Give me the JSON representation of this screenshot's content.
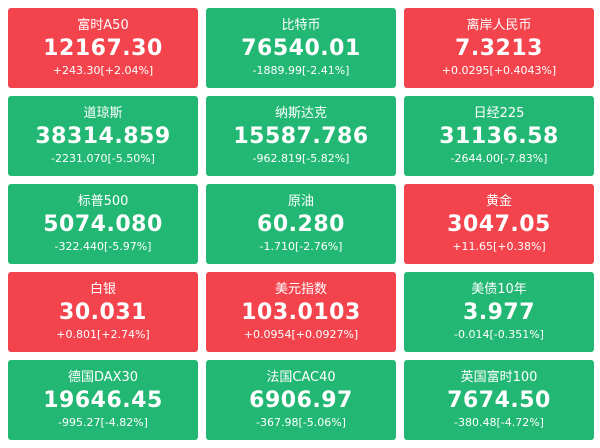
{
  "tiles": [
    {
      "name": "富时A50",
      "price": "12167.30",
      "change": "+243.30[+2.04%]",
      "color": "#f3434c"
    },
    {
      "name": "比特币",
      "price": "76540.01",
      "change": "-1889.99[-2.41%]",
      "color": "#22b874"
    },
    {
      "name": "离岸人民币",
      "price": "7.3213",
      "change": "+0.0295[+0.4043%]",
      "color": "#f3434c"
    },
    {
      "name": "道琼斯",
      "price": "38314.859",
      "change": "-2231.070[-5.50%]",
      "color": "#22b874"
    },
    {
      "name": "纳斯达克",
      "price": "15587.786",
      "change": "-962.819[-5.82%]",
      "color": "#22b874"
    },
    {
      "name": "日经225",
      "price": "31136.58",
      "change": "-2644.00[-7.83%]",
      "color": "#22b874"
    },
    {
      "name": "标普500",
      "price": "5074.080",
      "change": "-322.440[-5.97%]",
      "color": "#22b874"
    },
    {
      "name": "原油",
      "price": "60.280",
      "change": "-1.710[-2.76%]",
      "color": "#22b874"
    },
    {
      "name": "黄金",
      "price": "3047.05",
      "change": "+11.65[+0.38%]",
      "color": "#f3434c"
    },
    {
      "name": "白银",
      "price": "30.031",
      "change": "+0.801[+2.74%]",
      "color": "#f3434c"
    },
    {
      "name": "美元指数",
      "price": "103.0103",
      "change": "+0.0954[+0.0927%]",
      "color": "#f3434c"
    },
    {
      "name": "美债10年",
      "price": "3.977",
      "change": "-0.014[-0.351%]",
      "color": "#22b874"
    },
    {
      "name": "德国DAX30",
      "price": "19646.45",
      "change": "-995.27[-4.82%]",
      "color": "#22b874"
    },
    {
      "name": "法国CAC40",
      "price": "6906.97",
      "change": "-367.98[-5.06%]",
      "color": "#22b874"
    },
    {
      "name": "英国富时100",
      "price": "7674.50",
      "change": "-380.48[-4.72%]",
      "color": "#22b874"
    }
  ]
}
